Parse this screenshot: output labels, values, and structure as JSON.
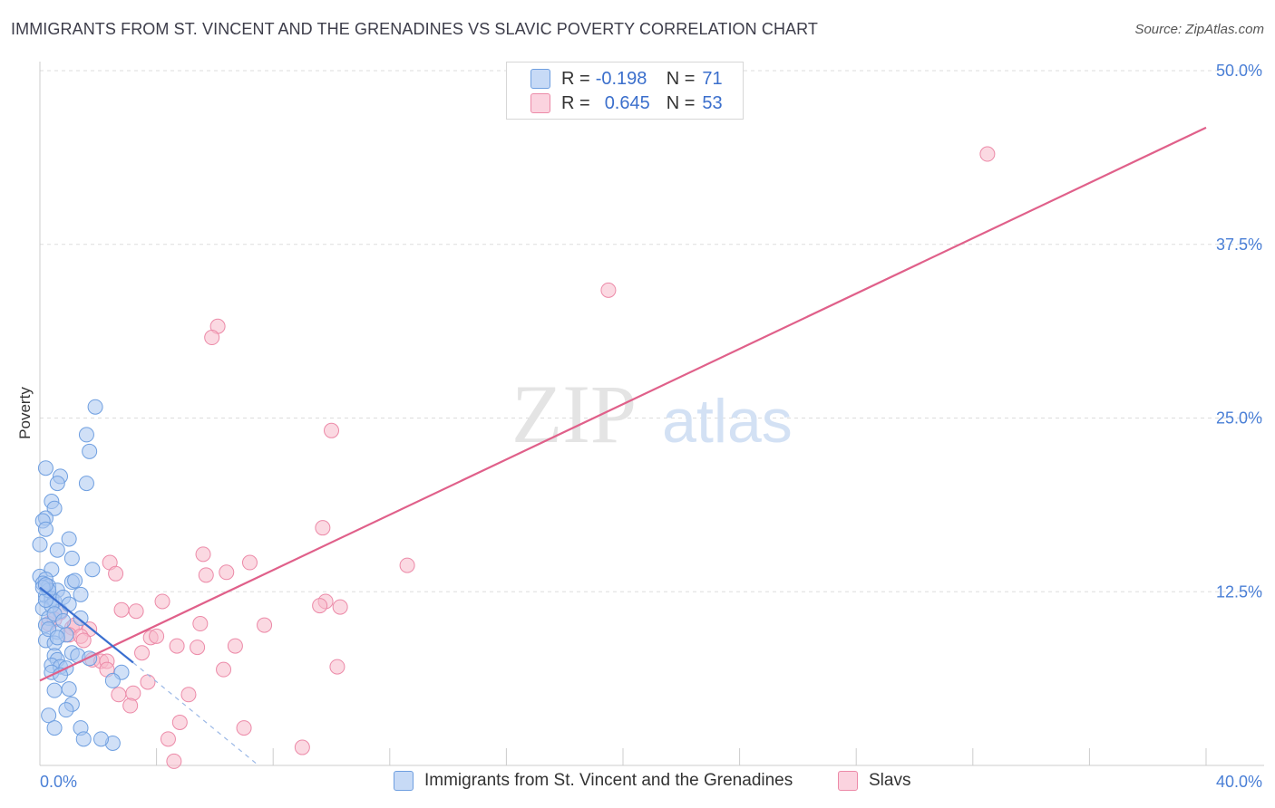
{
  "header": {
    "title": "IMMIGRANTS FROM ST. VINCENT AND THE GRENADINES VS SLAVIC POVERTY CORRELATION CHART",
    "source": "Source: ZipAtlas.com"
  },
  "watermark": {
    "zip": "ZIP",
    "atlas": "atlas"
  },
  "legend_top": {
    "rows": [
      {
        "r_label": "R = ",
        "r_value": "-0.198",
        "n_label": "N = ",
        "n_value": "71",
        "color": "#a9c7f0"
      },
      {
        "r_label": "R = ",
        "r_value": "0.645",
        "n_label": "N = ",
        "n_value": "53",
        "color": "#f7b9cb"
      }
    ]
  },
  "colors": {
    "blue_fill": "#a9c7f0",
    "blue_stroke": "#6f9fe0",
    "blue_line": "#3a6fd0",
    "pink_fill": "#f7b9cb",
    "pink_stroke": "#ec8aa8",
    "pink_line": "#e0608a",
    "axis_label": "#4a7fd6",
    "grid": "#dddddd"
  },
  "chart_data": {
    "type": "scatter",
    "title": "IMMIGRANTS FROM ST. VINCENT AND THE GRENADINES VS SLAVIC POVERTY CORRELATION CHART",
    "xlabel": "",
    "ylabel": "Poverty",
    "xlim": [
      0,
      40
    ],
    "ylim": [
      0,
      50
    ],
    "x_tick_labels": [
      "0.0%",
      "40.0%"
    ],
    "y_ticks": [
      12.5,
      25.0,
      37.5,
      50.0
    ],
    "y_tick_labels": [
      "12.5%",
      "25.0%",
      "37.5%",
      "50.0%"
    ],
    "grid": true,
    "series": [
      {
        "name": "Immigrants from St. Vincent and the Grenadines",
        "color": "#a9c7f0",
        "trend": {
          "x": [
            0,
            3.2
          ],
          "y": [
            12.8,
            7.4
          ],
          "dashed_to": {
            "x": [
              3.2,
              7.5
            ],
            "y": [
              7.4,
              0
            ]
          }
        },
        "points": [
          [
            0.2,
            21.4
          ],
          [
            0.7,
            20.8
          ],
          [
            0.6,
            20.3
          ],
          [
            1.6,
            20.3
          ],
          [
            0.4,
            19.0
          ],
          [
            0.5,
            18.5
          ],
          [
            0.2,
            17.8
          ],
          [
            0.1,
            17.6
          ],
          [
            0.2,
            17.0
          ],
          [
            1.9,
            25.8
          ],
          [
            1.6,
            23.8
          ],
          [
            1.7,
            22.6
          ],
          [
            1.0,
            16.3
          ],
          [
            0.0,
            15.9
          ],
          [
            0.6,
            15.5
          ],
          [
            1.1,
            14.9
          ],
          [
            0.4,
            14.1
          ],
          [
            1.8,
            14.1
          ],
          [
            0.0,
            13.6
          ],
          [
            0.2,
            13.4
          ],
          [
            0.1,
            13.1
          ],
          [
            1.1,
            13.2
          ],
          [
            1.2,
            13.3
          ],
          [
            0.3,
            12.9
          ],
          [
            0.6,
            12.6
          ],
          [
            0.2,
            12.2
          ],
          [
            0.4,
            12.0
          ],
          [
            0.5,
            11.8
          ],
          [
            1.4,
            12.3
          ],
          [
            0.1,
            11.3
          ],
          [
            0.7,
            11.1
          ],
          [
            0.3,
            10.6
          ],
          [
            1.4,
            10.6
          ],
          [
            0.2,
            10.1
          ],
          [
            0.6,
            9.6
          ],
          [
            0.9,
            9.4
          ],
          [
            0.2,
            9.0
          ],
          [
            0.5,
            8.8
          ],
          [
            1.1,
            8.1
          ],
          [
            1.3,
            7.9
          ],
          [
            0.5,
            7.9
          ],
          [
            0.6,
            7.6
          ],
          [
            1.7,
            7.7
          ],
          [
            0.4,
            7.2
          ],
          [
            0.7,
            7.1
          ],
          [
            0.9,
            7.0
          ],
          [
            0.4,
            6.7
          ],
          [
            0.7,
            6.5
          ],
          [
            2.8,
            6.7
          ],
          [
            2.5,
            6.1
          ],
          [
            0.5,
            5.4
          ],
          [
            1.0,
            5.5
          ],
          [
            1.1,
            4.4
          ],
          [
            0.9,
            4.0
          ],
          [
            0.3,
            3.6
          ],
          [
            0.5,
            2.7
          ],
          [
            1.4,
            2.7
          ],
          [
            1.5,
            1.9
          ],
          [
            2.5,
            1.6
          ],
          [
            2.1,
            1.9
          ],
          [
            0.4,
            11.5
          ],
          [
            0.8,
            12.1
          ],
          [
            0.3,
            12.6
          ],
          [
            0.2,
            11.9
          ],
          [
            0.5,
            10.9
          ],
          [
            0.1,
            12.8
          ],
          [
            0.3,
            9.8
          ],
          [
            0.6,
            9.2
          ],
          [
            0.8,
            10.4
          ],
          [
            0.2,
            13.0
          ],
          [
            1.0,
            11.6
          ]
        ]
      },
      {
        "name": "Slavs",
        "color": "#f7b9cb",
        "trend": {
          "x": [
            0,
            40
          ],
          "y": [
            6.1,
            45.9
          ]
        },
        "points": [
          [
            32.5,
            44.0
          ],
          [
            19.5,
            34.2
          ],
          [
            6.1,
            31.6
          ],
          [
            5.9,
            30.8
          ],
          [
            10.0,
            24.1
          ],
          [
            9.7,
            17.1
          ],
          [
            5.6,
            15.2
          ],
          [
            7.2,
            14.6
          ],
          [
            12.6,
            14.4
          ],
          [
            2.4,
            14.6
          ],
          [
            2.6,
            13.8
          ],
          [
            5.7,
            13.7
          ],
          [
            6.4,
            13.9
          ],
          [
            0.2,
            13.0
          ],
          [
            4.2,
            11.8
          ],
          [
            9.8,
            11.8
          ],
          [
            9.6,
            11.5
          ],
          [
            10.3,
            11.4
          ],
          [
            2.8,
            11.2
          ],
          [
            3.3,
            11.1
          ],
          [
            0.7,
            11.0
          ],
          [
            1.1,
            9.9
          ],
          [
            0.3,
            10.2
          ],
          [
            1.2,
            10.1
          ],
          [
            1.7,
            9.8
          ],
          [
            5.5,
            10.2
          ],
          [
            7.7,
            10.1
          ],
          [
            1.0,
            9.4
          ],
          [
            1.4,
            9.3
          ],
          [
            3.8,
            9.2
          ],
          [
            4.0,
            9.3
          ],
          [
            4.7,
            8.6
          ],
          [
            5.4,
            8.5
          ],
          [
            6.7,
            8.6
          ],
          [
            3.5,
            8.1
          ],
          [
            1.8,
            7.6
          ],
          [
            2.1,
            7.5
          ],
          [
            2.3,
            7.5
          ],
          [
            6.3,
            6.9
          ],
          [
            10.2,
            7.1
          ],
          [
            3.7,
            6.0
          ],
          [
            3.2,
            5.2
          ],
          [
            2.7,
            5.1
          ],
          [
            5.1,
            5.1
          ],
          [
            3.1,
            4.3
          ],
          [
            4.8,
            3.1
          ],
          [
            7.0,
            2.7
          ],
          [
            4.4,
            1.9
          ],
          [
            9.0,
            1.3
          ],
          [
            4.6,
            0.3
          ],
          [
            2.3,
            6.9
          ],
          [
            1.5,
            9.0
          ],
          [
            0.5,
            10.5
          ]
        ]
      }
    ]
  }
}
